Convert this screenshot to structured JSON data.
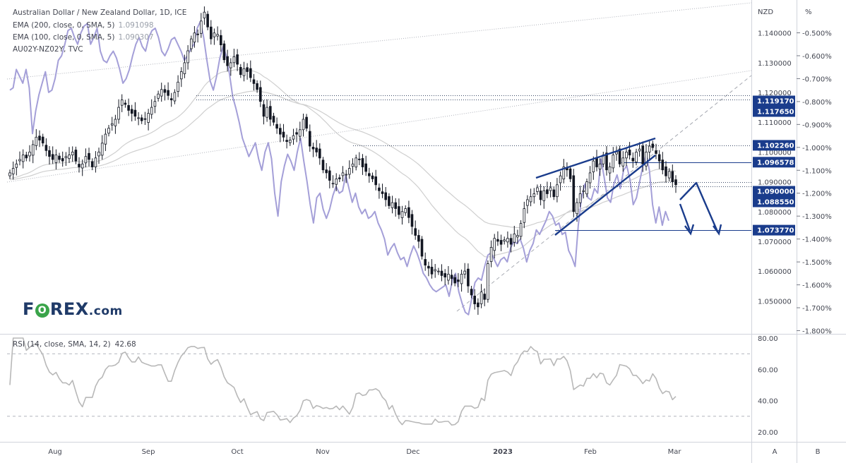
{
  "header": {
    "symbol_line": "Australian Dollar / New Zealand Dollar, 1D, ICE",
    "ema200_label": "EMA (200, close, 0, SMA, 5)",
    "ema200_value": "1.091098",
    "ema100_label": "EMA (100, close, 0, SMA, 5)",
    "ema100_value": "1.090307",
    "overlay_label": "AU02Y-NZ02Y, TVC"
  },
  "rsi_header": {
    "label": "RSI (14, close, SMA, 14, 2)",
    "value": "42.68"
  },
  "logo": {
    "before": "F",
    "o": "O",
    "after": "REX",
    "suffix": ".com"
  },
  "axis": {
    "price_unit": "NZD",
    "pct_unit": "%",
    "scale_a": "A",
    "scale_b": "B"
  },
  "colors": {
    "candle": "#131722",
    "overlay": "#a49fd8",
    "ema": "#cfcfcf",
    "pattern": "#1a3c8c",
    "level": "#1a3c8c",
    "rsi": "#b8b8b8",
    "label_bg": "#1a3c8c"
  },
  "chart_data": [
    {
      "type": "candlestick",
      "title": "Australian Dollar / New Zealand Dollar, 1D, ICE",
      "ylabel": "NZD",
      "ylim": [
        1.045,
        1.149
      ],
      "x_ticks": [
        "Aug",
        "Sep",
        "Oct",
        "Nov",
        "Dec",
        "2023",
        "Feb",
        "Mar"
      ],
      "y_ticks": [
        1.05,
        1.06,
        1.07,
        1.08,
        1.09,
        1.1,
        1.11,
        1.12,
        1.13,
        1.14
      ],
      "y_tick_labels": [
        "1.050000",
        "1.060000",
        "1.070000",
        "1.080000",
        "1.090000",
        "1.100000",
        "1.110000",
        "1.120000",
        "1.130000",
        "1.140000"
      ],
      "secondary_axis": {
        "label": "%",
        "range": [
          -1.8,
          -0.45
        ],
        "ticks": [
          "-0.500%",
          "-0.600%",
          "-0.700%",
          "-0.800%",
          "-0.900%",
          "-1.000%",
          "-1.100%",
          "-1.200%",
          "-1.300%",
          "-1.400%",
          "-1.500%",
          "-1.600%",
          "-1.700%",
          "-1.800%"
        ]
      },
      "horizontal_levels": [
        {
          "value": 1.11917,
          "label": "1.119170",
          "style": "dotted"
        },
        {
          "value": 1.11765,
          "label": "1.117650",
          "style": "dotted"
        },
        {
          "value": 1.10226,
          "label": "1.102260",
          "style": "dotted"
        },
        {
          "value": 1.096578,
          "label": "1.096578",
          "style": "solid"
        },
        {
          "value": 1.09,
          "label": "1.090000",
          "style": "dotted"
        },
        {
          "value": 1.08855,
          "label": "1.088550",
          "style": "dotted"
        },
        {
          "value": 1.07377,
          "label": "1.073770",
          "style": "solid"
        }
      ],
      "close_series": [
        1.093,
        1.0945,
        1.096,
        1.0975,
        1.099,
        1.098,
        1.1,
        1.1025,
        1.105,
        1.104,
        1.103,
        1.1005,
        1.0985,
        1.0975,
        1.099,
        1.0975,
        1.097,
        1.0985,
        1.099,
        1.1,
        1.097,
        1.095,
        1.096,
        1.0985,
        1.0975,
        1.095,
        1.098,
        1.1,
        1.103,
        1.106,
        1.108,
        1.1095,
        1.111,
        1.115,
        1.1175,
        1.116,
        1.114,
        1.113,
        1.112,
        1.1115,
        1.1105,
        1.111,
        1.113,
        1.115,
        1.117,
        1.1195,
        1.121,
        1.12,
        1.119,
        1.1175,
        1.12,
        1.1235,
        1.127,
        1.13,
        1.134,
        1.138,
        1.14,
        1.1395,
        1.144,
        1.147,
        1.142,
        1.138,
        1.14,
        1.1395,
        1.136,
        1.131,
        1.129,
        1.13,
        1.132,
        1.1295,
        1.126,
        1.128,
        1.127,
        1.125,
        1.123,
        1.121,
        1.117,
        1.112,
        1.115,
        1.111,
        1.11,
        1.108,
        1.106,
        1.105,
        1.1035,
        1.104,
        1.1055,
        1.106,
        1.1075,
        1.111,
        1.108,
        1.102,
        1.101,
        1.1,
        1.098,
        1.094,
        1.093,
        1.0905,
        1.0895,
        1.091,
        1.091,
        1.093,
        1.0925,
        1.0945,
        1.096,
        1.098,
        1.0975,
        1.095,
        1.0935,
        1.092,
        1.091,
        1.089,
        1.087,
        1.086,
        1.084,
        1.082,
        1.083,
        1.081,
        1.079,
        1.08,
        1.081,
        1.078,
        1.075,
        1.072,
        1.07,
        1.065,
        1.062,
        1.061,
        1.059,
        1.0605,
        1.06,
        1.0585,
        1.058,
        1.059,
        1.0575,
        1.056,
        1.0565,
        1.059,
        1.06,
        1.055,
        1.052,
        1.049,
        1.048,
        1.053,
        1.0505,
        1.0625,
        1.068,
        1.071,
        1.07,
        1.069,
        1.0705,
        1.071,
        1.069,
        1.0725,
        1.072,
        1.076,
        1.081,
        1.084,
        1.085,
        1.086,
        1.088,
        1.084,
        1.087,
        1.086,
        1.088,
        1.085,
        1.089,
        1.092,
        1.095,
        1.094,
        1.091,
        1.08,
        1.083,
        1.086,
        1.087,
        1.09,
        1.093,
        1.097,
        1.095,
        1.096,
        1.099,
        1.094,
        1.095,
        1.099,
        1.1,
        1.096,
        1.098,
        1.1,
        1.099,
        1.097,
        1.1,
        1.101,
        1.096,
        1.1,
        1.102,
        1.1015,
        1.0995,
        1.097,
        1.094,
        1.092,
        1.0935,
        1.09,
        1.089
      ]
    },
    {
      "type": "line",
      "title": "RSI (14, close, SMA, 14, 2)",
      "ylim": [
        15,
        82
      ],
      "y_ticks": [
        "20.00",
        "40.00",
        "60.00",
        "80.00"
      ],
      "guide_levels": [
        70,
        30
      ],
      "series": [
        {
          "name": "RSI",
          "last": 42.68
        }
      ]
    }
  ]
}
